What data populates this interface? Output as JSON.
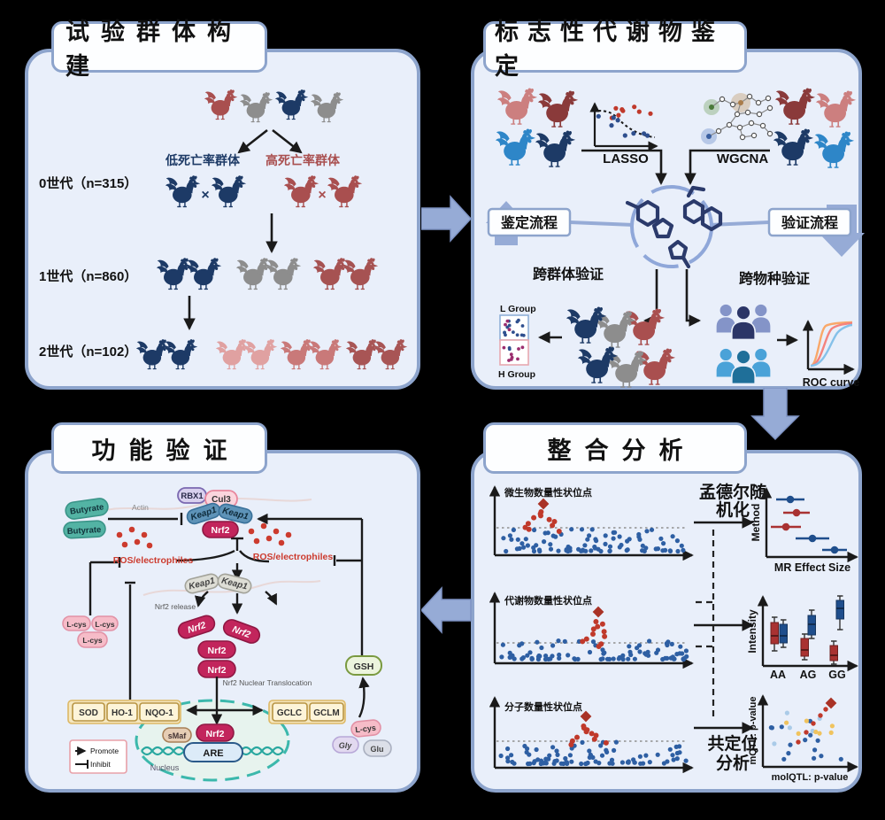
{
  "colors": {
    "background": "#000000",
    "panel_fill": "#e9effa",
    "panel_border": "#8da4cc",
    "flow_arrow": "#96abd6",
    "chicken_navy": "#1d3a66",
    "chicken_gray": "#8d8d8d",
    "chicken_red": "#a94f4f",
    "chicken_pink": "#dd9b9b",
    "chicken_bright_blue": "#2e86c8",
    "nrf2_pink": "#c2255c",
    "keap1_blue": "#5e93b8",
    "ros_red": "#cc3b2e",
    "manhattan_blue": "#2e5fa3",
    "manhattan_red": "#c0392b",
    "butyrate_teal": "#53b3a4"
  },
  "p1": {
    "title": "试验群体构建",
    "low_label": "低死亡率群体",
    "high_label": "高死亡率群体",
    "gen0": "0世代（n=315）",
    "gen1": "1世代（n=860）",
    "gen2": "2世代（n=102）",
    "cross": "×"
  },
  "p2": {
    "title": "标志性代谢物鉴定",
    "lasso": "LASSO",
    "wgcna": "WGCNA",
    "flow_identify": "鉴定流程",
    "flow_validate": "验证流程",
    "cross_population": "跨群体验证",
    "cross_species": "跨物种验证",
    "l_group": "L Group",
    "h_group": "H Group",
    "roc": "ROC curve"
  },
  "p3": {
    "title": "功能验证",
    "butyrate": "Butyrate",
    "actin": "Actin",
    "rbx1": "RBX1",
    "cul3": "Cul3",
    "keap1": "Keap1",
    "nrf2": "Nrf2",
    "ros": "ROS/electrophiles",
    "nrf2_release": "Nrf2 release",
    "lcys": "L-cys",
    "translocation": "Nrf2 Nuclear Translocation",
    "sod": "SOD",
    "ho1": "HO-1",
    "nqo1": "NQO-1",
    "gclc": "GCLC",
    "gclm": "GCLM",
    "gsh": "GSH",
    "gly": "Gly",
    "glu": "Glu",
    "smaf": "sMaf",
    "are": "ARE",
    "nucleus": "Nucleus",
    "promote": "Promote",
    "inhibit": "Inhibit"
  },
  "p4": {
    "title": "整合分析",
    "qtl_micro": "微生物数量性状位点",
    "qtl_metab": "代谢物数量性状位点",
    "qtl_mol": "分子数量性状位点",
    "mr_l1": "孟德尔随",
    "mr_l2": "机化",
    "coloc_l1": "共定位",
    "coloc_l2": "分析",
    "method": "Method",
    "mr_effect": "MR Effect Size",
    "intensity": "Intensity",
    "gt_aa": "AA",
    "gt_ag": "AG",
    "gt_gg": "GG",
    "mqtl": "mQTL: p-value",
    "molqtl": "molQTL: p-value"
  }
}
